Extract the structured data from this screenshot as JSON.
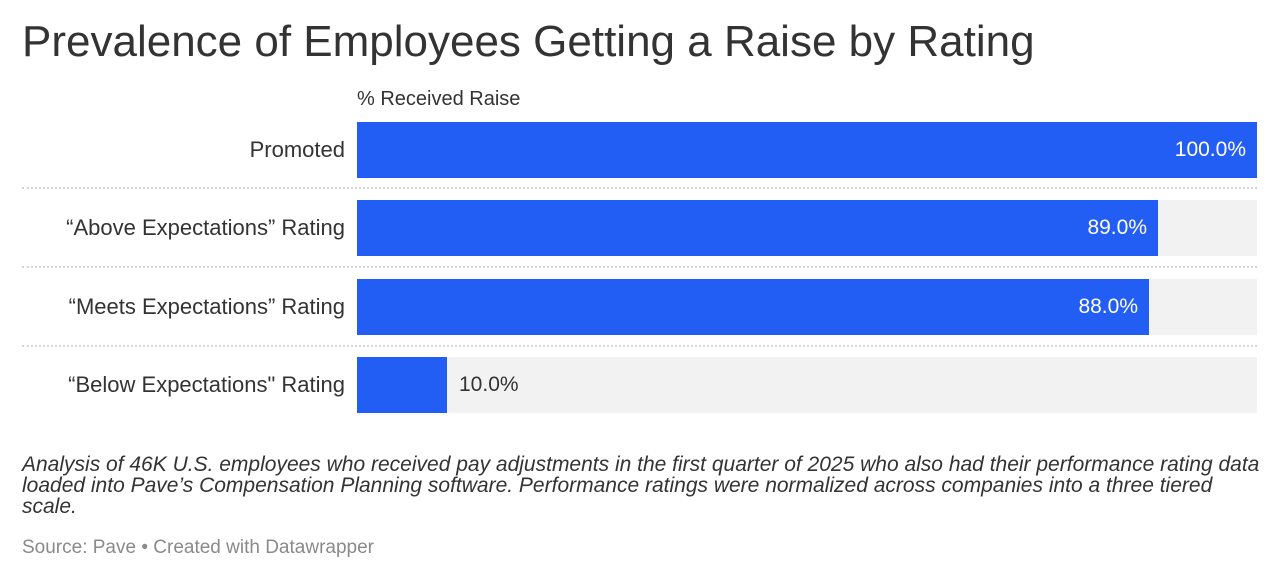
{
  "title": "Prevalence of Employees Getting a Raise by Rating",
  "column_header": "% Received Raise",
  "rows": [
    {
      "label": "Promoted",
      "value": 100.0,
      "value_label": "100.0%"
    },
    {
      "label": "“Above Expectations” Rating",
      "value": 89.0,
      "value_label": "89.0%"
    },
    {
      "label": "“Meets Expectations” Rating",
      "value": 88.0,
      "value_label": "88.0%"
    },
    {
      "label": "“Below Expectations\" Rating",
      "value": 10.0,
      "value_label": "10.0%"
    }
  ],
  "notes": "Analysis of 46K U.S. employees who received pay adjustments in the first quarter of 2025 who also had their performance rating data loaded into Pave’s Compensation Planning software. Performance ratings were normalized across companies into a three tiered scale.",
  "source": "Source: Pave • Created with Datawrapper",
  "colors": {
    "bar": "#235ef4",
    "track": "#f2f2f2",
    "text": "#333333",
    "source_text": "#8a8a8a"
  },
  "chart_data": {
    "type": "bar",
    "orientation": "horizontal",
    "title": "Prevalence of Employees Getting a Raise by Rating",
    "xlabel": "% Received Raise",
    "ylabel": "",
    "categories": [
      "Promoted",
      "“Above Expectations” Rating",
      "“Meets Expectations” Rating",
      "“Below Expectations\" Rating"
    ],
    "values": [
      100.0,
      89.0,
      88.0,
      10.0
    ],
    "value_labels": [
      "100.0%",
      "89.0%",
      "88.0%",
      "10.0%"
    ],
    "xlim": [
      0,
      100
    ],
    "grid": false,
    "legend": "none",
    "notes": "Analysis of 46K U.S. employees who received pay adjustments in the first quarter of 2025 who also had their performance rating data loaded into Pave’s Compensation Planning software. Performance ratings were normalized across companies into a three tiered scale.",
    "source": "Source: Pave • Created with Datawrapper"
  }
}
